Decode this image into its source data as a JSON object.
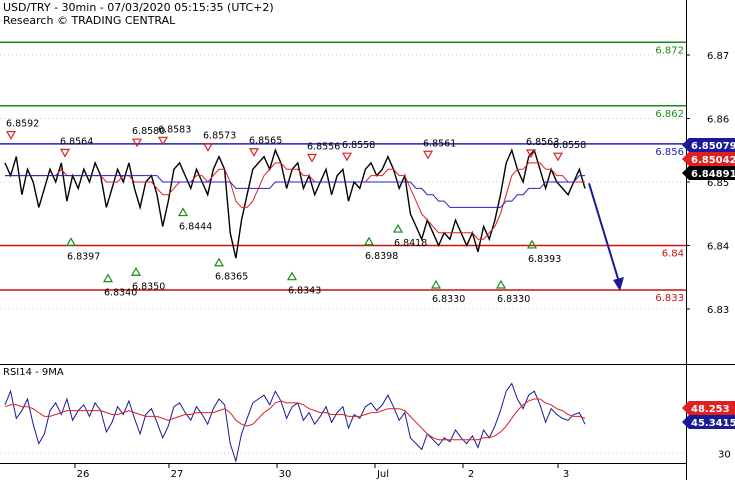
{
  "header": {
    "line1": "USD/TRY - 30min - 07/03/2020 05:15:35 (UTC+2)",
    "line2": "Research © TRADING CENTRAL"
  },
  "chart_data": {
    "type": "line",
    "instrument": "USD/TRY",
    "timeframe": "30min",
    "price_axis": {
      "ticks": [
        6.83,
        6.84,
        6.85,
        6.86,
        6.87
      ],
      "tick_labels": [
        "6.83",
        "6.84",
        "6.85",
        "6.86",
        "6.87"
      ],
      "range": [
        6.8215,
        6.8785
      ]
    },
    "x_axis": {
      "tick_labels": [
        "26",
        "27",
        "30",
        "Jul",
        "2",
        "3"
      ],
      "tick_dates": [
        "2020-06-26",
        "2020-06-27",
        "2020-06-30",
        "2020-07-01",
        "2020-07-02",
        "2020-07-03"
      ]
    },
    "levels": [
      {
        "value": 6.872,
        "label": "6.872",
        "color": "#1a8a1a"
      },
      {
        "value": 6.862,
        "label": "6.862",
        "color": "#1a8a1a"
      },
      {
        "value": 6.856,
        "label": "6.856",
        "color": "#2222bb"
      },
      {
        "value": 6.84,
        "label": "6.84",
        "color": "#cc1111"
      },
      {
        "value": 6.833,
        "label": "6.833",
        "color": "#cc1111"
      }
    ],
    "price_tags": [
      {
        "value": 6.85079,
        "label": "6.85079",
        "bg": "#1a1a99"
      },
      {
        "value": 6.85042,
        "label": "6.85042",
        "bg": "#e02020"
      },
      {
        "value": 6.84891,
        "label": "6.84891",
        "bg": "#000000"
      }
    ],
    "highs": [
      6.8592,
      6.8564,
      6.858,
      6.8583,
      6.8573,
      6.8565,
      6.8556,
      6.8558,
      6.8561,
      6.8563,
      6.8558
    ],
    "lows": [
      6.8397,
      6.834,
      6.835,
      6.8444,
      6.8365,
      6.8343,
      6.8398,
      6.8418,
      6.833,
      6.833,
      6.8393
    ],
    "price_series": [
      {
        "name": "price",
        "color": "#000000",
        "values": [
          6.853,
          6.851,
          6.854,
          6.848,
          6.852,
          6.85,
          6.846,
          6.849,
          6.852,
          6.85,
          6.853,
          6.847,
          6.851,
          6.849,
          6.852,
          6.85,
          6.853,
          6.851,
          6.846,
          6.849,
          6.852,
          6.85,
          6.853,
          6.849,
          6.846,
          6.85,
          6.851,
          6.848,
          6.843,
          6.847,
          6.852,
          6.853,
          6.851,
          6.849,
          6.852,
          6.85,
          6.848,
          6.852,
          6.854,
          6.852,
          6.842,
          6.838,
          6.844,
          6.848,
          6.852,
          6.853,
          6.854,
          6.852,
          6.855,
          6.853,
          6.849,
          6.852,
          6.853,
          6.849,
          6.851,
          6.848,
          6.85,
          6.852,
          6.848,
          6.851,
          6.852,
          6.847,
          6.85,
          6.849,
          6.852,
          6.853,
          6.851,
          6.852,
          6.854,
          6.852,
          6.849,
          6.851,
          6.845,
          6.843,
          6.841,
          6.844,
          6.842,
          6.84,
          6.842,
          6.841,
          6.844,
          6.842,
          6.84,
          6.842,
          6.839,
          6.843,
          6.841,
          6.844,
          6.848,
          6.853,
          6.855,
          6.852,
          6.85,
          6.854,
          6.855,
          6.852,
          6.849,
          6.852,
          6.85,
          6.849,
          6.848,
          6.85,
          6.852,
          6.849
        ]
      },
      {
        "name": "ma-red",
        "color": "#dd2222",
        "values": [
          6.851,
          6.851,
          6.851,
          6.851,
          6.851,
          6.851,
          6.851,
          6.851,
          6.851,
          6.851,
          6.852,
          6.851,
          6.851,
          6.851,
          6.851,
          6.851,
          6.851,
          6.851,
          6.85,
          6.85,
          6.85,
          6.851,
          6.851,
          6.85,
          6.85,
          6.85,
          6.85,
          6.849,
          6.848,
          6.848,
          6.849,
          6.85,
          6.85,
          6.85,
          6.851,
          6.851,
          6.85,
          6.851,
          6.852,
          6.852,
          6.85,
          6.847,
          6.846,
          6.846,
          6.847,
          6.849,
          6.851,
          6.852,
          6.853,
          6.853,
          6.852,
          6.852,
          6.852,
          6.851,
          6.851,
          6.85,
          6.85,
          6.85,
          6.85,
          6.85,
          6.85,
          6.85,
          6.85,
          6.85,
          6.85,
          6.851,
          6.851,
          6.851,
          6.852,
          6.852,
          6.851,
          6.851,
          6.849,
          6.847,
          6.845,
          6.844,
          6.843,
          6.842,
          6.842,
          6.842,
          6.842,
          6.842,
          6.842,
          6.842,
          6.841,
          6.841,
          6.842,
          6.843,
          6.845,
          6.848,
          6.851,
          6.852,
          6.852,
          6.853,
          6.853,
          6.853,
          6.852,
          6.852,
          6.851,
          6.851,
          6.85,
          6.85,
          6.85,
          6.85
        ]
      },
      {
        "name": "ma-blue",
        "color": "#2222bb",
        "values": [
          6.851,
          6.851,
          6.851,
          6.851,
          6.851,
          6.851,
          6.851,
          6.851,
          6.851,
          6.851,
          6.851,
          6.851,
          6.851,
          6.851,
          6.851,
          6.851,
          6.851,
          6.851,
          6.851,
          6.851,
          6.851,
          6.851,
          6.851,
          6.851,
          6.851,
          6.851,
          6.851,
          6.851,
          6.85,
          6.85,
          6.85,
          6.85,
          6.85,
          6.85,
          6.85,
          6.85,
          6.85,
          6.85,
          6.85,
          6.85,
          6.85,
          6.849,
          6.849,
          6.849,
          6.849,
          6.849,
          6.849,
          6.849,
          6.85,
          6.85,
          6.85,
          6.85,
          6.85,
          6.85,
          6.85,
          6.85,
          6.85,
          6.85,
          6.85,
          6.85,
          6.85,
          6.85,
          6.85,
          6.85,
          6.85,
          6.85,
          6.85,
          6.85,
          6.85,
          6.85,
          6.85,
          6.85,
          6.85,
          6.849,
          6.849,
          6.848,
          6.848,
          6.847,
          6.847,
          6.846,
          6.846,
          6.846,
          6.846,
          6.846,
          6.846,
          6.846,
          6.846,
          6.846,
          6.846,
          6.847,
          6.847,
          6.848,
          6.848,
          6.849,
          6.849,
          6.849,
          6.85,
          6.85,
          6.85,
          6.85,
          6.85,
          6.85,
          6.851,
          6.851
        ]
      }
    ],
    "forecast_arrow": {
      "from": 6.849,
      "to": 6.833,
      "color": "#1a1a99"
    },
    "rsi": {
      "title": "RSI14 - 9MA",
      "ticks": [
        30
      ],
      "tick_labels": [
        "30"
      ],
      "range": [
        25,
        75
      ],
      "price_tags": [
        {
          "value": 48.253,
          "label": "48.253",
          "bg": "#e02020"
        },
        {
          "value": 45.3415,
          "label": "45.3415",
          "bg": "#1a1a99"
        }
      ],
      "rsi_series": {
        "name": "RSI14",
        "color": "#1a1a99",
        "values": [
          55,
          62,
          48,
          52,
          58,
          45,
          35,
          40,
          52,
          56,
          50,
          58,
          47,
          52,
          55,
          49,
          56,
          52,
          41,
          46,
          54,
          50,
          57,
          48,
          40,
          50,
          53,
          46,
          38,
          44,
          54,
          56,
          51,
          47,
          54,
          50,
          45,
          53,
          58,
          55,
          35,
          26,
          40,
          48,
          56,
          58,
          60,
          55,
          62,
          57,
          48,
          54,
          56,
          47,
          51,
          45,
          49,
          54,
          46,
          51,
          54,
          43,
          50,
          48,
          54,
          56,
          52,
          55,
          60,
          54,
          47,
          51,
          38,
          35,
          32,
          40,
          37,
          34,
          38,
          36,
          42,
          38,
          35,
          39,
          33,
          42,
          38,
          44,
          52,
          62,
          66,
          58,
          53,
          60,
          62,
          55,
          46,
          53,
          50,
          48,
          47,
          50,
          51,
          45
        ]
      },
      "ma_series": {
        "name": "9MA",
        "color": "#dd2222",
        "values": [
          54,
          55,
          55,
          54,
          54,
          53,
          51,
          49,
          49,
          50,
          51,
          52,
          52,
          52,
          52,
          52,
          52,
          52,
          51,
          50,
          50,
          51,
          52,
          51,
          50,
          49,
          49,
          49,
          48,
          47,
          48,
          49,
          50,
          50,
          51,
          51,
          51,
          51,
          52,
          53,
          51,
          47,
          45,
          44,
          45,
          48,
          51,
          53,
          56,
          57,
          56,
          56,
          56,
          55,
          53,
          52,
          51,
          51,
          50,
          50,
          50,
          49,
          49,
          49,
          50,
          51,
          51,
          52,
          53,
          53,
          53,
          52,
          49,
          46,
          43,
          40,
          38,
          37,
          37,
          37,
          37,
          37,
          37,
          37,
          37,
          38,
          38,
          39,
          41,
          44,
          48,
          52,
          55,
          57,
          58,
          58,
          56,
          55,
          53,
          52,
          50,
          49,
          49,
          48
        ]
      }
    }
  }
}
